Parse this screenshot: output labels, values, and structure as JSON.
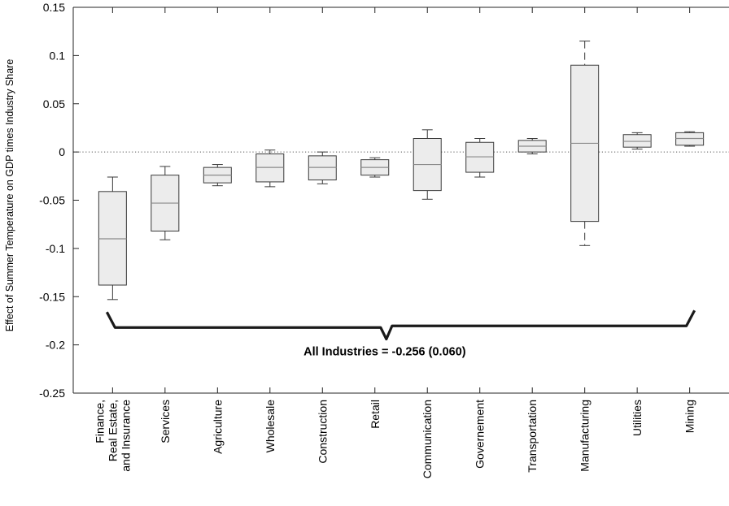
{
  "chart_data": {
    "type": "box",
    "title": "",
    "xlabel": "",
    "ylabel": "Effect of Summer Temperature on GDP times Industry Share",
    "ylim": [
      -0.25,
      0.15
    ],
    "yticks": [
      -0.25,
      -0.2,
      -0.15,
      -0.1,
      -0.05,
      0,
      0.05,
      0.1,
      0.15
    ],
    "ytick_labels": [
      "-0.25",
      "-0.2",
      "-0.15",
      "-0.1",
      "-0.05",
      "0",
      "0.05",
      "0.1",
      "0.15"
    ],
    "grid": false,
    "zero_line": "dotted",
    "categories": [
      {
        "label_lines": [
          "Finance,",
          "Real Estate,",
          "and Insurance"
        ],
        "whisker_low": -0.153,
        "q1": -0.138,
        "median": -0.09,
        "q3": -0.041,
        "whisker_high": -0.026
      },
      {
        "label_lines": [
          "Services"
        ],
        "whisker_low": -0.091,
        "q1": -0.082,
        "median": -0.053,
        "q3": -0.024,
        "whisker_high": -0.015
      },
      {
        "label_lines": [
          "Agriculture"
        ],
        "whisker_low": -0.035,
        "q1": -0.032,
        "median": -0.024,
        "q3": -0.016,
        "whisker_high": -0.013
      },
      {
        "label_lines": [
          "Wholesale"
        ],
        "whisker_low": -0.036,
        "q1": -0.031,
        "median": -0.016,
        "q3": -0.002,
        "whisker_high": 0.002
      },
      {
        "label_lines": [
          "Construction"
        ],
        "whisker_low": -0.033,
        "q1": -0.029,
        "median": -0.016,
        "q3": -0.004,
        "whisker_high": 0.0
      },
      {
        "label_lines": [
          "Retail"
        ],
        "whisker_low": -0.026,
        "q1": -0.024,
        "median": -0.016,
        "q3": -0.008,
        "whisker_high": -0.006
      },
      {
        "label_lines": [
          "Communication"
        ],
        "whisker_low": -0.049,
        "q1": -0.04,
        "median": -0.013,
        "q3": 0.014,
        "whisker_high": 0.023
      },
      {
        "label_lines": [
          "Governement"
        ],
        "whisker_low": -0.026,
        "q1": -0.021,
        "median": -0.005,
        "q3": 0.01,
        "whisker_high": 0.014
      },
      {
        "label_lines": [
          "Transportation"
        ],
        "whisker_low": -0.002,
        "q1": 0.0,
        "median": 0.006,
        "q3": 0.012,
        "whisker_high": 0.014
      },
      {
        "label_lines": [
          "Manufacturing"
        ],
        "whisker_low": -0.097,
        "q1": -0.072,
        "median": 0.009,
        "q3": 0.09,
        "whisker_high": 0.115
      },
      {
        "label_lines": [
          "Utilities"
        ],
        "whisker_low": 0.003,
        "q1": 0.005,
        "median": 0.011,
        "q3": 0.018,
        "whisker_high": 0.02
      },
      {
        "label_lines": [
          "Mining"
        ],
        "whisker_low": 0.006,
        "q1": 0.007,
        "median": 0.014,
        "q3": 0.02,
        "whisker_high": 0.021
      }
    ],
    "annotation": {
      "text": "All Industries = -0.256 (0.060)",
      "bracket_y": -0.182,
      "bracket_tip_y": -0.194
    },
    "colors": {
      "box_fill": "#ececec",
      "box_stroke": "#3a3a3a",
      "median": "#8a8a8a",
      "whisker": "#3a3a3a",
      "axis": "#262626",
      "bracket": "#1a1a1a"
    }
  }
}
